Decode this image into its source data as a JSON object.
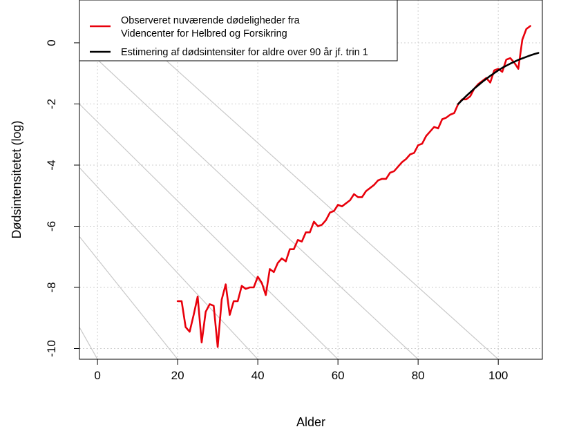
{
  "chart_data": {
    "type": "line",
    "title": "",
    "xlabel": "Alder",
    "ylabel": "Dødsintensitetet (log)",
    "xlim": [
      -4.5,
      111
    ],
    "ylim": [
      -10.35,
      1.4
    ],
    "x_ticks": [
      0,
      20,
      40,
      60,
      80,
      100
    ],
    "y_ticks": [
      0,
      -2,
      -4,
      -6,
      -8,
      -10
    ],
    "x_tick_labels": [
      "0",
      "20",
      "40",
      "60",
      "80",
      "100"
    ],
    "y_tick_labels": [
      "0",
      "-2",
      "-4",
      "-6",
      "-8",
      "-10"
    ],
    "grid": true,
    "legend_position": "top-left",
    "diagonal_reference_lines": [
      {
        "x0": -20,
        "y0": -5.7,
        "x1": 0,
        "y1": -10.35
      },
      {
        "x0": -20,
        "y0": -3.8,
        "x1": 20,
        "y1": -10.35
      },
      {
        "x0": -20,
        "y0": -1.9,
        "x1": 40,
        "y1": -10.35
      },
      {
        "x0": -20,
        "y0": 0.0,
        "x1": 60,
        "y1": -10.35
      },
      {
        "x0": -20,
        "y0": 1.9,
        "x1": 80,
        "y1": -10.35
      },
      {
        "x0": -20,
        "y0": 3.8,
        "x1": 100,
        "y1": -10.35
      }
    ],
    "series": [
      {
        "name": "Observeret nuværende dødeligheder fra Videncenter for Helbred og Forsikring",
        "color": "#e8000b",
        "x": [
          20,
          21,
          22,
          23,
          24,
          25,
          26,
          27,
          28,
          29,
          30,
          31,
          32,
          33,
          34,
          35,
          36,
          37,
          38,
          39,
          40,
          41,
          42,
          43,
          44,
          45,
          46,
          47,
          48,
          49,
          50,
          51,
          52,
          53,
          54,
          55,
          56,
          57,
          58,
          59,
          60,
          61,
          62,
          63,
          64,
          65,
          66,
          67,
          68,
          69,
          70,
          71,
          72,
          73,
          74,
          75,
          76,
          77,
          78,
          79,
          80,
          81,
          82,
          83,
          84,
          85,
          86,
          87,
          88,
          89,
          90,
          91,
          92,
          93,
          94,
          95,
          96,
          97,
          98,
          99,
          100,
          101,
          102,
          103,
          104,
          105,
          106,
          107,
          108
        ],
        "y": [
          -8.45,
          -8.45,
          -9.3,
          -9.45,
          -8.9,
          -8.3,
          -9.8,
          -8.8,
          -8.55,
          -8.6,
          -9.95,
          -8.4,
          -7.9,
          -8.9,
          -8.45,
          -8.45,
          -7.95,
          -8.05,
          -8.0,
          -8.0,
          -7.65,
          -7.85,
          -8.25,
          -7.4,
          -7.5,
          -7.2,
          -7.05,
          -7.15,
          -6.75,
          -6.75,
          -6.45,
          -6.5,
          -6.2,
          -6.2,
          -5.85,
          -6.0,
          -5.95,
          -5.8,
          -5.55,
          -5.5,
          -5.3,
          -5.35,
          -5.25,
          -5.15,
          -4.95,
          -5.05,
          -5.05,
          -4.85,
          -4.75,
          -4.65,
          -4.5,
          -4.45,
          -4.45,
          -4.25,
          -4.2,
          -4.05,
          -3.9,
          -3.8,
          -3.65,
          -3.6,
          -3.35,
          -3.3,
          -3.05,
          -2.9,
          -2.75,
          -2.8,
          -2.5,
          -2.45,
          -2.35,
          -2.3,
          -2.0,
          -1.85,
          -1.85,
          -1.75,
          -1.5,
          -1.35,
          -1.25,
          -1.15,
          -1.3,
          -0.9,
          -0.85,
          -0.95,
          -0.55,
          -0.5,
          -0.65,
          -0.85,
          0.1,
          0.45,
          0.55
        ]
      },
      {
        "name": "Estimering af dødsintensiter for aldre over 90 år jf. trin 1",
        "color": "#000000",
        "x": [
          90,
          91,
          92,
          93,
          94,
          95,
          96,
          97,
          98,
          99,
          100,
          101,
          102,
          103,
          104,
          105,
          106,
          107,
          108,
          109,
          110
        ],
        "y": [
          -2.0,
          -1.87,
          -1.74,
          -1.62,
          -1.5,
          -1.39,
          -1.28,
          -1.18,
          -1.08,
          -0.99,
          -0.9,
          -0.82,
          -0.75,
          -0.68,
          -0.62,
          -0.56,
          -0.51,
          -0.46,
          -0.41,
          -0.37,
          -0.33
        ]
      }
    ]
  },
  "legend": {
    "items": [
      {
        "lines": [
          "Observeret nuværende dødeligheder fra",
          "Videncenter for Helbred og Forsikring"
        ],
        "color": "#e8000b"
      },
      {
        "lines": [
          "Estimering af dødsintensiter for aldre over 90 år jf. trin 1"
        ],
        "color": "#000000"
      }
    ]
  }
}
